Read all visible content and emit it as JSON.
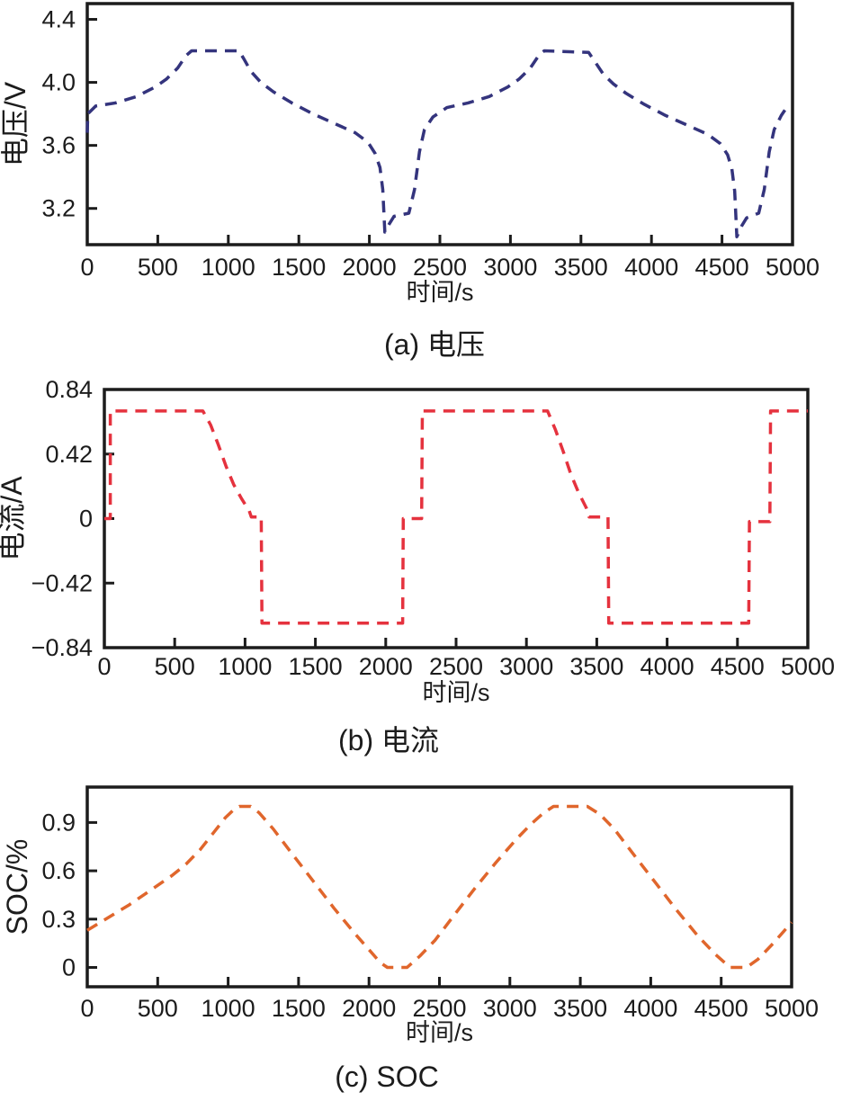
{
  "chart_data": [
    {
      "id": "voltage",
      "type": "line",
      "caption": "(a) 电压",
      "xlabel": "时间/s",
      "ylabel": "电压/V",
      "line_color": "#34347d",
      "axis_color": "#1c1c1c",
      "line_style": "dashed",
      "legend": "none",
      "grid": false,
      "x_range": [
        0,
        5000
      ],
      "y_range": [
        2.97,
        4.5
      ],
      "x_ticks": [
        {
          "v": 0,
          "label": "0"
        },
        {
          "v": 500,
          "label": "500"
        },
        {
          "v": 1000,
          "label": "1000"
        },
        {
          "v": 1500,
          "label": "1500"
        },
        {
          "v": 2000,
          "label": "2000"
        },
        {
          "v": 2500,
          "label": "2500"
        },
        {
          "v": 3000,
          "label": "3000"
        },
        {
          "v": 3500,
          "label": "3500"
        },
        {
          "v": 4000,
          "label": "4000"
        },
        {
          "v": 4500,
          "label": "4500"
        },
        {
          "v": 5000,
          "label": "5000"
        }
      ],
      "y_ticks": [
        {
          "v": 4.4,
          "label": "4.4"
        },
        {
          "v": 4.0,
          "label": "4.0"
        },
        {
          "v": 3.6,
          "label": "3.6"
        },
        {
          "v": 3.2,
          "label": "3.2"
        }
      ],
      "points": [
        [
          0,
          3.68
        ],
        [
          4,
          3.8
        ],
        [
          60,
          3.85
        ],
        [
          200,
          3.87
        ],
        [
          350,
          3.91
        ],
        [
          480,
          3.97
        ],
        [
          560,
          4.02
        ],
        [
          640,
          4.09
        ],
        [
          700,
          4.17
        ],
        [
          740,
          4.2
        ],
        [
          1075,
          4.2
        ],
        [
          1110,
          4.15
        ],
        [
          1160,
          4.07
        ],
        [
          1230,
          4.0
        ],
        [
          1320,
          3.94
        ],
        [
          1450,
          3.87
        ],
        [
          1600,
          3.8
        ],
        [
          1750,
          3.74
        ],
        [
          1900,
          3.68
        ],
        [
          1990,
          3.62
        ],
        [
          2040,
          3.55
        ],
        [
          2075,
          3.46
        ],
        [
          2095,
          3.32
        ],
        [
          2110,
          3.05
        ],
        [
          2140,
          3.1
        ],
        [
          2175,
          3.15
        ],
        [
          2280,
          3.17
        ],
        [
          2320,
          3.32
        ],
        [
          2355,
          3.56
        ],
        [
          2390,
          3.7
        ],
        [
          2450,
          3.78
        ],
        [
          2550,
          3.84
        ],
        [
          2700,
          3.87
        ],
        [
          2850,
          3.91
        ],
        [
          2980,
          3.97
        ],
        [
          3060,
          4.02
        ],
        [
          3140,
          4.09
        ],
        [
          3200,
          4.17
        ],
        [
          3240,
          4.2
        ],
        [
          3555,
          4.19
        ],
        [
          3600,
          4.13
        ],
        [
          3660,
          4.05
        ],
        [
          3730,
          3.99
        ],
        [
          3820,
          3.93
        ],
        [
          3950,
          3.86
        ],
        [
          4100,
          3.79
        ],
        [
          4250,
          3.73
        ],
        [
          4400,
          3.67
        ],
        [
          4490,
          3.61
        ],
        [
          4540,
          3.54
        ],
        [
          4570,
          3.45
        ],
        [
          4590,
          3.31
        ],
        [
          4605,
          3.02
        ],
        [
          4640,
          3.09
        ],
        [
          4675,
          3.14
        ],
        [
          4760,
          3.17
        ],
        [
          4800,
          3.32
        ],
        [
          4835,
          3.56
        ],
        [
          4870,
          3.7
        ],
        [
          4920,
          3.79
        ],
        [
          4965,
          3.85
        ]
      ]
    },
    {
      "id": "current",
      "type": "line",
      "caption": "(b) 电流",
      "xlabel": "时间/s",
      "ylabel": "电流/A",
      "line_color": "#e5323e",
      "axis_color": "#1c1c1c",
      "line_style": "dashed",
      "legend": "none",
      "grid": false,
      "x_range": [
        0,
        5000
      ],
      "y_range": [
        -0.84,
        0.84
      ],
      "x_ticks": [
        {
          "v": 0,
          "label": "0"
        },
        {
          "v": 500,
          "label": "500"
        },
        {
          "v": 1000,
          "label": "1000"
        },
        {
          "v": 1500,
          "label": "1500"
        },
        {
          "v": 2000,
          "label": "2000"
        },
        {
          "v": 2500,
          "label": "2500"
        },
        {
          "v": 3000,
          "label": "3000"
        },
        {
          "v": 3500,
          "label": "3500"
        },
        {
          "v": 4000,
          "label": "4000"
        },
        {
          "v": 4500,
          "label": "4500"
        },
        {
          "v": 5000,
          "label": "5000"
        }
      ],
      "y_ticks": [
        {
          "v": 0.84,
          "label": "0.84"
        },
        {
          "v": 0.42,
          "label": "0.42"
        },
        {
          "v": 0,
          "label": "0"
        },
        {
          "v": -0.42,
          "label": "−0.42"
        },
        {
          "v": -0.84,
          "label": "−0.84"
        }
      ],
      "points": [
        [
          0,
          0
        ],
        [
          42,
          0
        ],
        [
          42,
          0.7
        ],
        [
          700,
          0.7
        ],
        [
          755,
          0.61
        ],
        [
          810,
          0.48
        ],
        [
          865,
          0.34
        ],
        [
          920,
          0.22
        ],
        [
          975,
          0.13
        ],
        [
          1030,
          0.05
        ],
        [
          1045,
          0.01
        ],
        [
          1115,
          0.01
        ],
        [
          1120,
          -0.68
        ],
        [
          2120,
          -0.68
        ],
        [
          2125,
          0
        ],
        [
          2255,
          0
        ],
        [
          2260,
          0.7
        ],
        [
          3150,
          0.7
        ],
        [
          3205,
          0.58
        ],
        [
          3260,
          0.44
        ],
        [
          3315,
          0.29
        ],
        [
          3370,
          0.17
        ],
        [
          3425,
          0.07
        ],
        [
          3445,
          0.01
        ],
        [
          3580,
          0.01
        ],
        [
          3585,
          -0.68
        ],
        [
          4580,
          -0.68
        ],
        [
          4585,
          -0.02
        ],
        [
          4730,
          -0.02
        ],
        [
          4735,
          0.7
        ],
        [
          5000,
          0.7
        ]
      ]
    },
    {
      "id": "soc",
      "type": "line",
      "caption": "(c) SOC",
      "xlabel": "时间/s",
      "ylabel": "SOC/%",
      "line_color": "#e0662c",
      "axis_color": "#1c1c1c",
      "line_style": "dashed",
      "legend": "none",
      "grid": false,
      "x_range": [
        0,
        5000
      ],
      "y_range": [
        -0.12,
        1.12
      ],
      "x_ticks": [
        {
          "v": 0,
          "label": "0"
        },
        {
          "v": 500,
          "label": "500"
        },
        {
          "v": 1000,
          "label": "1000"
        },
        {
          "v": 1500,
          "label": "1500"
        },
        {
          "v": 2000,
          "label": "2000"
        },
        {
          "v": 2500,
          "label": "2500"
        },
        {
          "v": 3000,
          "label": "3000"
        },
        {
          "v": 3500,
          "label": "3500"
        },
        {
          "v": 4000,
          "label": "4000"
        },
        {
          "v": 4500,
          "label": "4500"
        },
        {
          "v": 5000,
          "label": "5000"
        }
      ],
      "y_ticks": [
        {
          "v": 0.9,
          "label": "0.9"
        },
        {
          "v": 0.6,
          "label": "0.6"
        },
        {
          "v": 0.3,
          "label": "0.3"
        },
        {
          "v": 0,
          "label": "0"
        }
      ],
      "points": [
        [
          0,
          0.23
        ],
        [
          150,
          0.31
        ],
        [
          300,
          0.39
        ],
        [
          450,
          0.48
        ],
        [
          600,
          0.57
        ],
        [
          700,
          0.64
        ],
        [
          800,
          0.73
        ],
        [
          900,
          0.84
        ],
        [
          980,
          0.93
        ],
        [
          1040,
          0.98
        ],
        [
          1080,
          1.0
        ],
        [
          1160,
          1.0
        ],
        [
          1220,
          0.96
        ],
        [
          1320,
          0.86
        ],
        [
          1450,
          0.71
        ],
        [
          1600,
          0.54
        ],
        [
          1750,
          0.37
        ],
        [
          1900,
          0.21
        ],
        [
          2000,
          0.11
        ],
        [
          2080,
          0.03
        ],
        [
          2130,
          0.0
        ],
        [
          2270,
          0.0
        ],
        [
          2360,
          0.07
        ],
        [
          2470,
          0.17
        ],
        [
          2600,
          0.32
        ],
        [
          2750,
          0.49
        ],
        [
          2900,
          0.65
        ],
        [
          3050,
          0.8
        ],
        [
          3150,
          0.89
        ],
        [
          3240,
          0.96
        ],
        [
          3310,
          1.0
        ],
        [
          3550,
          1.0
        ],
        [
          3640,
          0.95
        ],
        [
          3740,
          0.86
        ],
        [
          3880,
          0.7
        ],
        [
          4030,
          0.53
        ],
        [
          4180,
          0.36
        ],
        [
          4330,
          0.2
        ],
        [
          4460,
          0.08
        ],
        [
          4550,
          0.01
        ],
        [
          4560,
          0.0
        ],
        [
          4680,
          0.0
        ],
        [
          4760,
          0.05
        ],
        [
          4870,
          0.15
        ],
        [
          5000,
          0.28
        ]
      ]
    }
  ]
}
